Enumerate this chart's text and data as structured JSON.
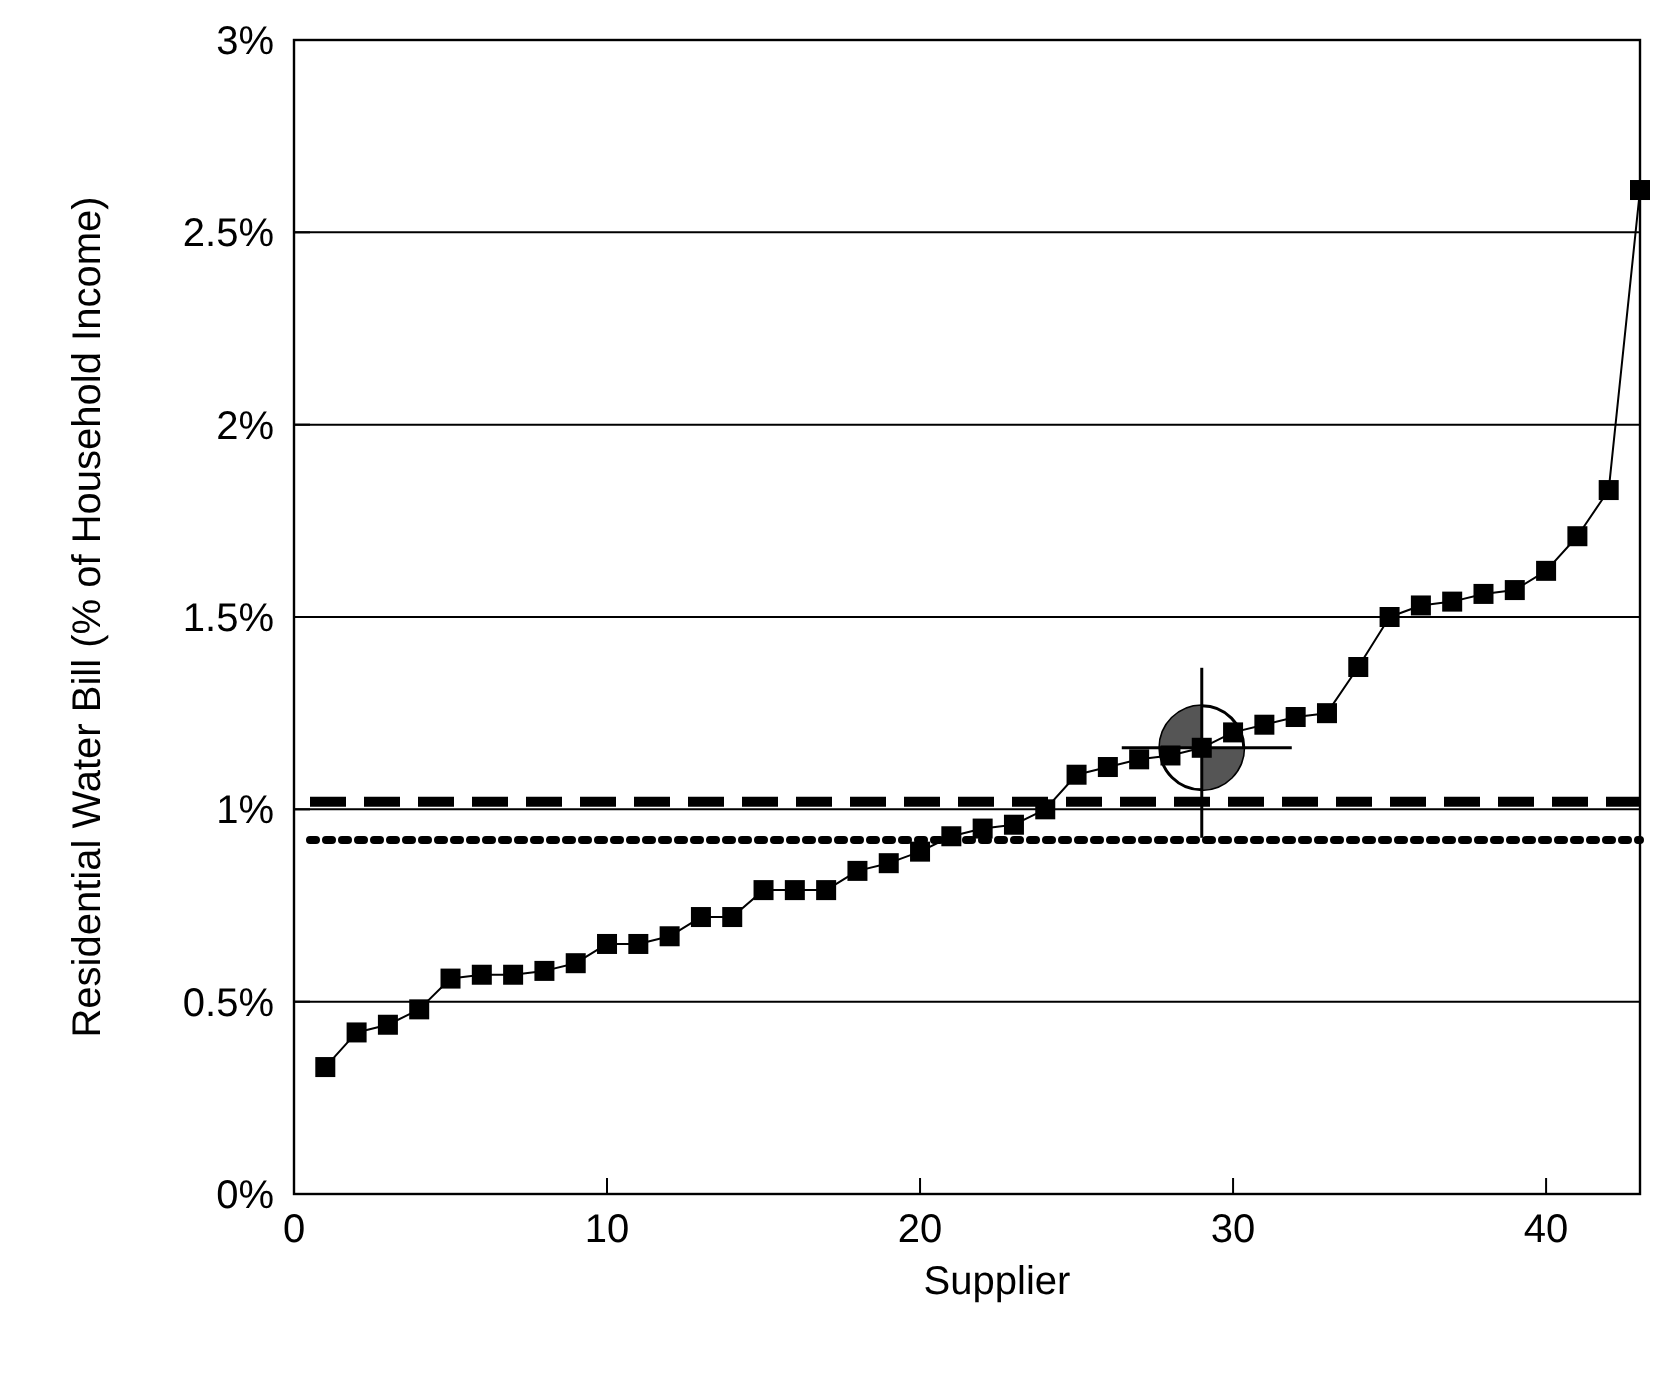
{
  "chart_data": {
    "type": "line",
    "xlabel": "Supplier",
    "ylabel": "Residential Water Bill (% of Household Income)",
    "x": [
      1,
      2,
      3,
      4,
      5,
      6,
      7,
      8,
      9,
      10,
      11,
      12,
      13,
      14,
      15,
      16,
      17,
      18,
      19,
      20,
      21,
      22,
      23,
      24,
      25,
      26,
      27,
      28,
      29,
      30,
      31,
      32,
      33,
      34,
      35,
      36,
      37,
      38,
      39,
      40,
      41,
      42,
      43
    ],
    "series": [
      {
        "color": "#000000",
        "values": [
          0.33,
          0.42,
          0.44,
          0.48,
          0.56,
          0.57,
          0.57,
          0.58,
          0.6,
          0.65,
          0.65,
          0.67,
          0.72,
          0.72,
          0.79,
          0.79,
          0.79,
          0.84,
          0.86,
          0.89,
          0.93,
          0.95,
          0.96,
          1.0,
          1.09,
          1.11,
          1.13,
          1.14,
          1.16,
          1.2,
          1.22,
          1.24,
          1.25,
          1.37,
          1.5,
          1.53,
          1.54,
          1.56,
          1.57,
          1.62,
          1.71,
          1.83,
          2.61
        ]
      }
    ],
    "marker": "square",
    "line_style": "solid",
    "xlim": [
      0,
      43
    ],
    "xticks": [
      0,
      10,
      20,
      30,
      40
    ],
    "ylim": [
      0,
      3
    ],
    "yticks": [
      {
        "value": 0,
        "label": "0%"
      },
      {
        "value": 0.5,
        "label": "0.5%"
      },
      {
        "value": 1,
        "label": "1%"
      },
      {
        "value": 1.5,
        "label": "1.5%"
      },
      {
        "value": 2,
        "label": "2%"
      },
      {
        "value": 2.5,
        "label": "2.5%"
      },
      {
        "value": 3,
        "label": "3%"
      }
    ],
    "grid": "y",
    "ref_lines": [
      {
        "axis": "y",
        "value": 1.02,
        "color": "#000000",
        "line_style": "dashed"
      },
      {
        "axis": "y",
        "value": 0.92,
        "color": "#000000",
        "line_style": "dotted"
      }
    ]
  }
}
